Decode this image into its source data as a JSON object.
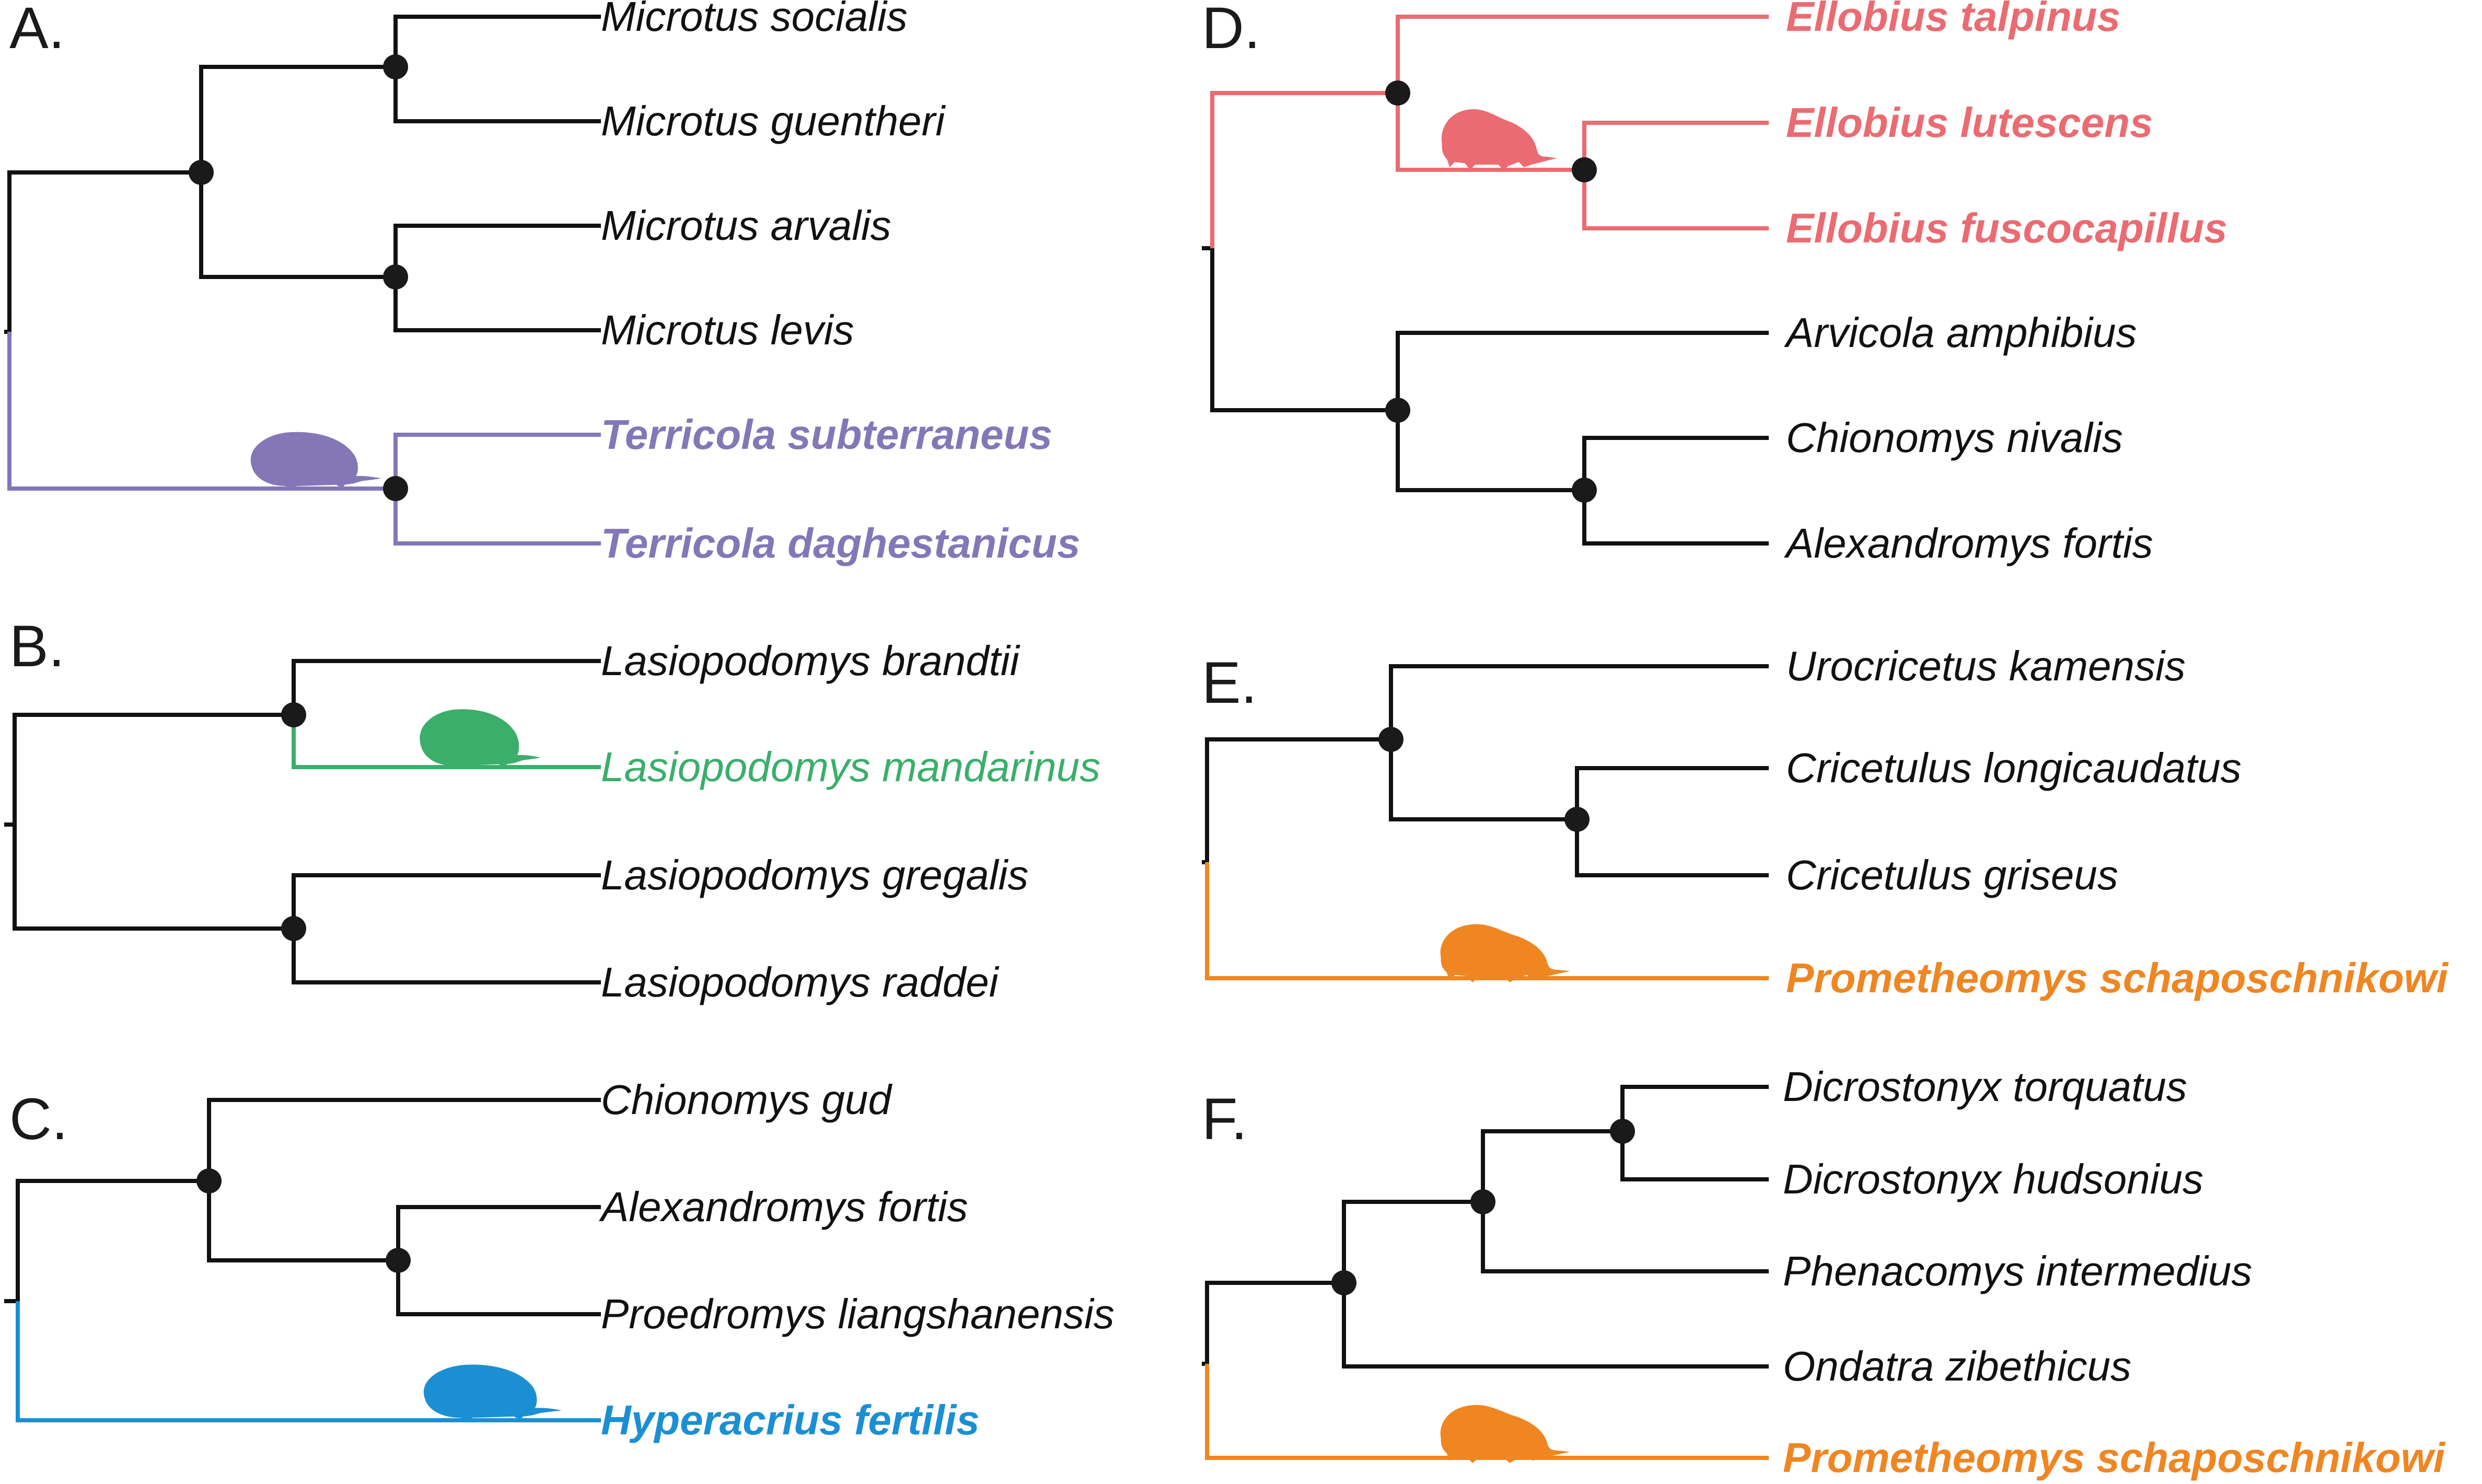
{
  "colors": {
    "default": "#111111",
    "purple": "#8477b7",
    "green": "#3bae6b",
    "blue": "#1b8fd3",
    "red": "#ea6b71",
    "orange": "#ef8622"
  },
  "panels": [
    {
      "id": "A",
      "label": "A.",
      "taxa": [
        {
          "name": "Microtus socialis",
          "color": "default",
          "bold": false
        },
        {
          "name": "Microtus guentheri",
          "color": "default",
          "bold": false
        },
        {
          "name": "Microtus arvalis",
          "color": "default",
          "bold": false
        },
        {
          "name": "Microtus levis",
          "color": "default",
          "bold": false
        },
        {
          "name": "Terricola subterraneus",
          "color": "purple",
          "bold": true
        },
        {
          "name": "Terricola daghestanicus",
          "color": "purple",
          "bold": true
        }
      ],
      "silhouette": {
        "icon": "vole-silhouette-icon",
        "color": "purple"
      }
    },
    {
      "id": "B",
      "label": "B.",
      "taxa": [
        {
          "name": "Lasiopodomys brandtii",
          "color": "default",
          "bold": false
        },
        {
          "name": "Lasiopodomys mandarinus",
          "color": "green",
          "bold": false
        },
        {
          "name": "Lasiopodomys gregalis",
          "color": "default",
          "bold": false
        },
        {
          "name": "Lasiopodomys raddei",
          "color": "default",
          "bold": false
        }
      ],
      "silhouette": {
        "icon": "vole-silhouette-icon",
        "color": "green"
      }
    },
    {
      "id": "C",
      "label": "C.",
      "taxa": [
        {
          "name": "Chionomys gud",
          "color": "default",
          "bold": false
        },
        {
          "name": "Alexandromys fortis",
          "color": "default",
          "bold": false
        },
        {
          "name": "Proedromys liangshanensis",
          "color": "default",
          "bold": false
        },
        {
          "name": "Hyperacrius fertilis",
          "color": "blue",
          "bold": true
        }
      ],
      "silhouette": {
        "icon": "vole-silhouette-icon",
        "color": "blue"
      }
    },
    {
      "id": "D",
      "label": "D.",
      "taxa": [
        {
          "name": "Ellobius talpinus",
          "color": "red",
          "bold": true
        },
        {
          "name": "Ellobius lutescens",
          "color": "red",
          "bold": true
        },
        {
          "name": "Ellobius fuscocapillus",
          "color": "red",
          "bold": true
        },
        {
          "name": "Arvicola amphibius",
          "color": "default",
          "bold": false
        },
        {
          "name": "Chionomys nivalis",
          "color": "default",
          "bold": false
        },
        {
          "name": "Alexandromys fortis",
          "color": "default",
          "bold": false
        }
      ],
      "silhouette": {
        "icon": "mole-vole-silhouette-icon",
        "color": "red"
      }
    },
    {
      "id": "E",
      "label": "E.",
      "taxa": [
        {
          "name": "Urocricetus kamensis",
          "color": "default",
          "bold": false
        },
        {
          "name": "Cricetulus longicaudatus",
          "color": "default",
          "bold": false
        },
        {
          "name": "Cricetulus griseus",
          "color": "default",
          "bold": false
        },
        {
          "name": "Prometheomys schaposchnikowi",
          "color": "orange",
          "bold": true
        }
      ],
      "silhouette": {
        "icon": "mole-vole-silhouette-icon",
        "color": "orange"
      }
    },
    {
      "id": "F",
      "label": "F.",
      "taxa": [
        {
          "name": "Dicrostonyx torquatus",
          "color": "default",
          "bold": false
        },
        {
          "name": "Dicrostonyx hudsonius",
          "color": "default",
          "bold": false
        },
        {
          "name": "Phenacomys intermedius",
          "color": "default",
          "bold": false
        },
        {
          "name": "Ondatra zibethicus",
          "color": "default",
          "bold": false
        },
        {
          "name": "Prometheomys schaposchnikowi",
          "color": "orange",
          "bold": true
        }
      ],
      "silhouette": {
        "icon": "mole-vole-silhouette-icon",
        "color": "orange"
      }
    }
  ]
}
